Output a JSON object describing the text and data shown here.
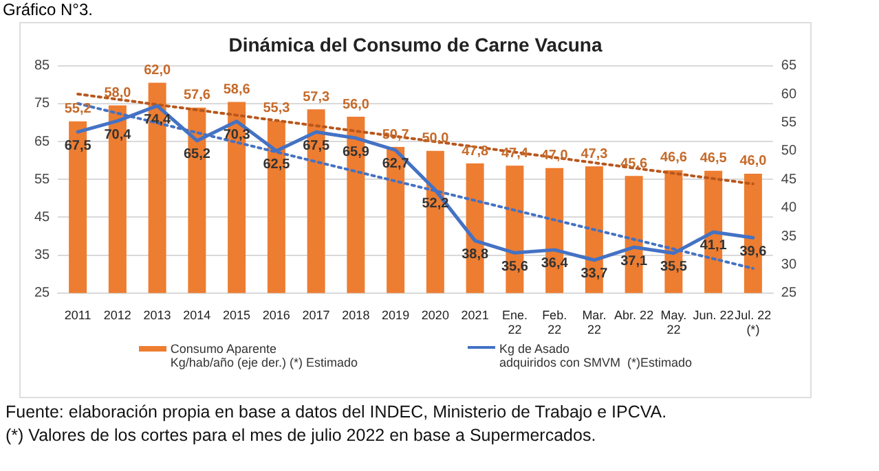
{
  "chart_data": {
    "type": "bar",
    "title": "Dinámica del Consumo de Carne Vacuna",
    "categories": [
      "2011",
      "2012",
      "2013",
      "2014",
      "2015",
      "2016",
      "2017",
      "2018",
      "2019",
      "2020",
      "2021",
      "Ene.\n22",
      "Feb.\n22",
      "Mar.\n22",
      "Abr. 22",
      "May.\n22",
      "Jun. 22",
      "Jul. 22\n(*)"
    ],
    "series": [
      {
        "name": "Consumo Aparente\nKg/hab/año (eje der.) (*) Estimado",
        "axis": "y2",
        "color": "#ed7d31",
        "values": [
          55.2,
          58.0,
          62.0,
          57.6,
          58.6,
          55.3,
          57.3,
          56.0,
          50.7,
          50.0,
          47.8,
          47.4,
          47.0,
          47.3,
          45.6,
          46.6,
          46.5,
          46.0
        ],
        "value_labels": [
          "55,2",
          "58,0",
          "62,0",
          "57,6",
          "58,6",
          "55,3",
          "57,3",
          "56,0",
          "50,7",
          "50,0",
          "47,8",
          "47,4",
          "47,0",
          "47,3",
          "45,6",
          "46,6",
          "46,5",
          "46,0"
        ]
      },
      {
        "name": "Kg de Asado\nadquiridos con SMVM  (*)Estimado",
        "type": "line",
        "color": "#4472c4",
        "values": [
          67.5,
          70.4,
          74.4,
          65.2,
          70.3,
          62.5,
          67.5,
          65.9,
          62.7,
          52.2,
          38.8,
          35.6,
          36.4,
          33.7,
          37.1,
          35.5,
          41.1,
          39.6
        ],
        "value_labels": [
          "67,5",
          "70,4",
          "74,4",
          "65,2",
          "70,3",
          "62,5",
          "67,5",
          "65,9",
          "62,7",
          "52,2",
          "38,8",
          "35,6",
          "36,4",
          "33,7",
          "37,1",
          "35,5",
          "41,1",
          "39,6"
        ]
      },
      {
        "type": "line",
        "axis": "y2",
        "color": "#b8561c",
        "line_style": "dotted",
        "values": [
          60.0,
          null,
          null,
          null,
          null,
          null,
          null,
          null,
          null,
          null,
          null,
          null,
          null,
          null,
          null,
          null,
          null,
          44.2
        ]
      },
      {
        "type": "line",
        "color": "#4472c4",
        "line_style": "dotted",
        "values": [
          75.0,
          null,
          null,
          null,
          null,
          null,
          null,
          null,
          null,
          null,
          null,
          null,
          null,
          null,
          null,
          null,
          null,
          31.5
        ]
      }
    ],
    "ylim": [
      25,
      85
    ],
    "yticks": [
      25,
      35,
      45,
      55,
      65,
      75,
      85
    ],
    "y2lim": [
      25,
      65
    ],
    "y2ticks": [
      25,
      30,
      35,
      40,
      45,
      50,
      55,
      60,
      65
    ],
    "grid": "y",
    "legend": "bottom",
    "marker": "none",
    "annotations": [
      "Gráfico N°3.",
      "Fuente: elaboración propia en base a datos del INDEC, Ministerio de Trabajo e IPCVA.",
      "(*) Valores de los cortes para el mes de julio 2022 en base a Supermercados."
    ]
  }
}
